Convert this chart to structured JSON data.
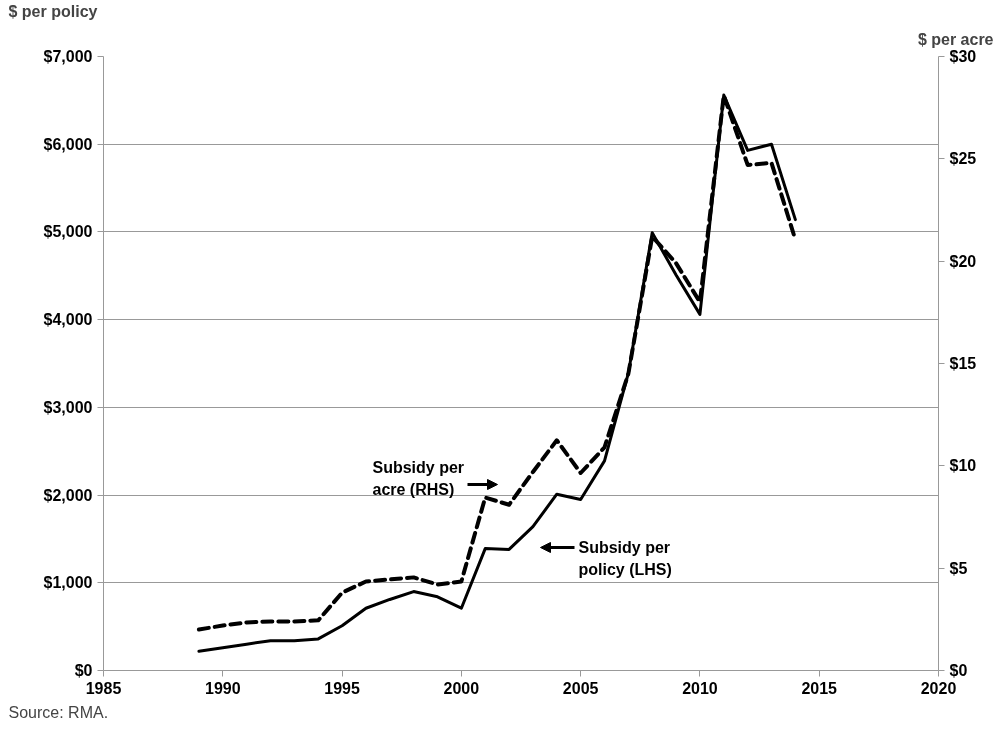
{
  "chart_data": {
    "type": "line",
    "ylabel": "$ per policy",
    "y2label": "$ per acre",
    "x": [
      1989,
      1990,
      1991,
      1992,
      1993,
      1994,
      1995,
      1996,
      1997,
      1998,
      1999,
      2000,
      2001,
      2002,
      2003,
      2004,
      2005,
      2006,
      2007,
      2008,
      2009,
      2010,
      2011,
      2012,
      2013,
      2014
    ],
    "series": [
      {
        "name": "Subsidy per policy (LHS)",
        "color": "#000000",
        "line_style": "solid",
        "values": [
          220,
          260,
          300,
          340,
          340,
          360,
          510,
          710,
          810,
          900,
          840,
          710,
          1390,
          1380,
          1640,
          2010,
          1950,
          2390,
          3390,
          4990,
          4510,
          4060,
          6560,
          5930,
          6000,
          5140
        ]
      },
      {
        "name": "Subsidy per acre (RHS)",
        "color": "#000000",
        "line_style": "dashed",
        "axis": "y2",
        "values": [
          2.0,
          2.2,
          2.35,
          2.4,
          2.4,
          2.45,
          3.8,
          4.35,
          4.45,
          4.55,
          4.2,
          4.35,
          8.45,
          8.1,
          9.7,
          11.25,
          9.65,
          10.9,
          14.5,
          21.2,
          19.9,
          18.0,
          28.1,
          24.7,
          24.8,
          21.05
        ]
      }
    ],
    "xlim": [
      1985,
      2020
    ],
    "xticks": [
      1985,
      1990,
      1995,
      2000,
      2005,
      2010,
      2015,
      2020
    ],
    "ylim": [
      0,
      7000
    ],
    "yticks": [
      {
        "value": 0,
        "label": "$0"
      },
      {
        "value": 1000,
        "label": "$1,000"
      },
      {
        "value": 2000,
        "label": "$2,000"
      },
      {
        "value": 3000,
        "label": "$3,000"
      },
      {
        "value": 4000,
        "label": "$4,000"
      },
      {
        "value": 5000,
        "label": "$5,000"
      },
      {
        "value": 6000,
        "label": "$6,000"
      },
      {
        "value": 7000,
        "label": "$7,000"
      }
    ],
    "y2lim": [
      0,
      30
    ],
    "y2ticks": [
      {
        "value": 0,
        "label": "$0"
      },
      {
        "value": 5,
        "label": "$5"
      },
      {
        "value": 10,
        "label": "$10"
      },
      {
        "value": 15,
        "label": "$15"
      },
      {
        "value": 20,
        "label": "$20"
      },
      {
        "value": 25,
        "label": "$25"
      },
      {
        "value": 30,
        "label": "$30"
      }
    ],
    "grid": "y",
    "annotations": [
      "Source: RMA."
    ]
  }
}
